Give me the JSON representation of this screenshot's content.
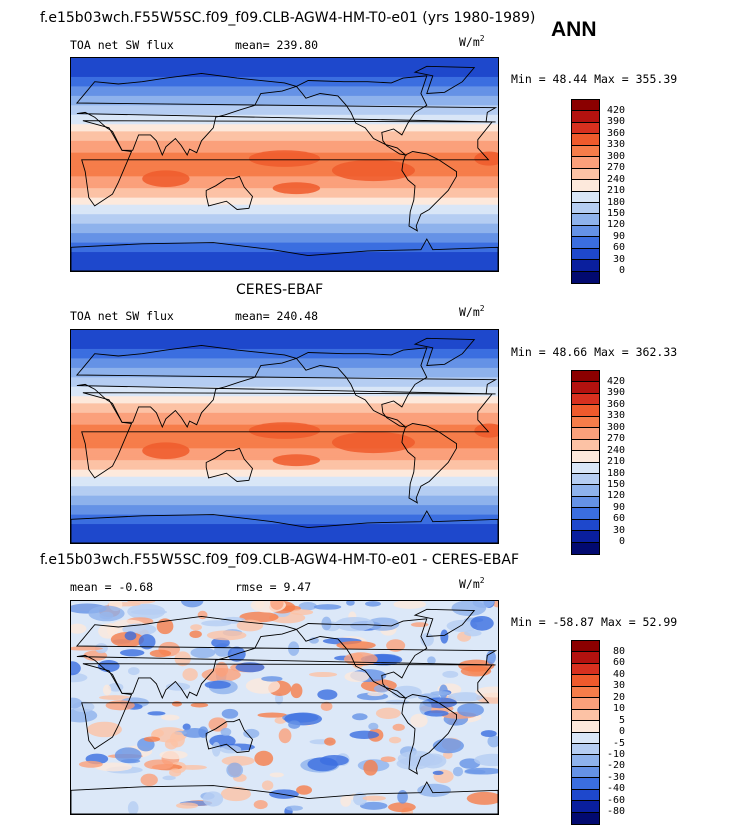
{
  "header": {
    "case_title": "f.e15b03wch.F55W5SC.f09_f09.CLB-AGW4-HM-T0-e01 (yrs 1980-1989)",
    "season": "ANN"
  },
  "panels": [
    {
      "id": "model",
      "variable": "TOA net SW flux",
      "stat_text": "mean= 239.80",
      "units": "W/m",
      "units_exp": "2",
      "minmax": "Min =  48.44 Max = 355.39",
      "colorbar_levels": [
        "420",
        "390",
        "360",
        "330",
        "300",
        "270",
        "240",
        "210",
        "180",
        "150",
        "120",
        "90",
        "60",
        "30",
        "0"
      ],
      "colorbar_colors": [
        "#8b0000",
        "#b3120f",
        "#d7301f",
        "#ef5a2c",
        "#f67d4a",
        "#fba07b",
        "#fcc2a5",
        "#fde9dc",
        "#d9e6f7",
        "#b5cdf2",
        "#8eb2ec",
        "#6592e6",
        "#3b6ee0",
        "#1e48cc",
        "#0a1f9e",
        "#020a70"
      ],
      "field_type": "mean"
    },
    {
      "id": "obs",
      "subtitle": "CERES-EBAF",
      "variable": "TOA net SW flux",
      "stat_text": "mean= 240.48",
      "units": "W/m",
      "units_exp": "2",
      "minmax": "Min =  48.66 Max = 362.33",
      "colorbar_levels": [
        "420",
        "390",
        "360",
        "330",
        "300",
        "270",
        "240",
        "210",
        "180",
        "150",
        "120",
        "90",
        "60",
        "30",
        "0"
      ],
      "colorbar_colors": [
        "#8b0000",
        "#b3120f",
        "#d7301f",
        "#ef5a2c",
        "#f67d4a",
        "#fba07b",
        "#fcc2a5",
        "#fde9dc",
        "#d9e6f7",
        "#b5cdf2",
        "#8eb2ec",
        "#6592e6",
        "#3b6ee0",
        "#1e48cc",
        "#0a1f9e",
        "#020a70"
      ],
      "field_type": "mean"
    },
    {
      "id": "diff",
      "subtitle": "f.e15b03wch.F55W5SC.f09_f09.CLB-AGW4-HM-T0-e01 - CERES-EBAF",
      "mean_text": "mean =   -0.68",
      "rmse_text": "rmse =    9.47",
      "units": "W/m",
      "units_exp": "2",
      "minmax": "Min = -58.87 Max =  52.99",
      "colorbar_levels": [
        "80",
        "60",
        "40",
        "30",
        "20",
        "10",
        "5",
        "0",
        "-5",
        "-10",
        "-20",
        "-30",
        "-40",
        "-60",
        "-80"
      ],
      "colorbar_colors": [
        "#8b0000",
        "#b3120f",
        "#d7301f",
        "#ef5a2c",
        "#f67d4a",
        "#fba07b",
        "#fcc2a5",
        "#fde9dc",
        "#d9e6f7",
        "#b5cdf2",
        "#8eb2ec",
        "#6592e6",
        "#3b6ee0",
        "#1e48cc",
        "#0a1f9e",
        "#020a70"
      ],
      "field_type": "diff"
    }
  ]
}
